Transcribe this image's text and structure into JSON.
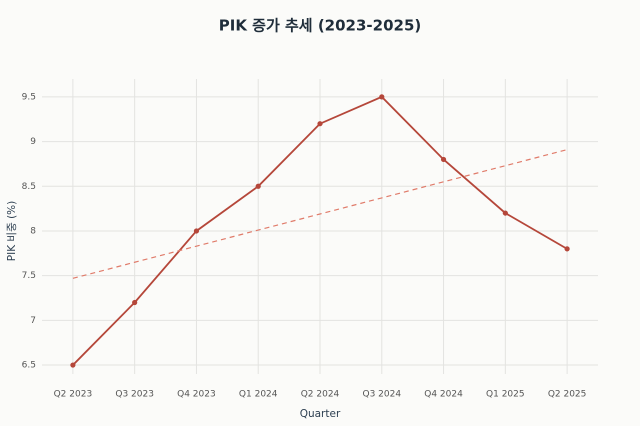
{
  "chart_data": {
    "type": "line",
    "title": "PIK 증가 추세 (2023-2025)",
    "x_label": "Quarter",
    "y_label": "PIK 비중 (%)",
    "categories": [
      "Q2 2023",
      "Q3 2023",
      "Q4 2023",
      "Q1 2024",
      "Q2 2024",
      "Q3 2024",
      "Q4 2024",
      "Q1 2025",
      "Q2 2025"
    ],
    "series": [
      {
        "color": "#b5473a",
        "values": [
          6.5,
          7.2,
          8.0,
          8.5,
          9.2,
          9.5,
          8.8,
          8.2,
          7.8
        ],
        "markers": true,
        "dash": false
      },
      {
        "color": "#e07b6a",
        "values": [
          7.47,
          7.65,
          7.83,
          8.01,
          8.19,
          8.37,
          8.55,
          8.73,
          8.91
        ],
        "markers": false,
        "dash": true
      }
    ],
    "ylim": [
      6.4,
      9.7
    ],
    "yticks": [
      6.5,
      7,
      7.5,
      8,
      8.5,
      9,
      9.5
    ],
    "grid": true
  }
}
